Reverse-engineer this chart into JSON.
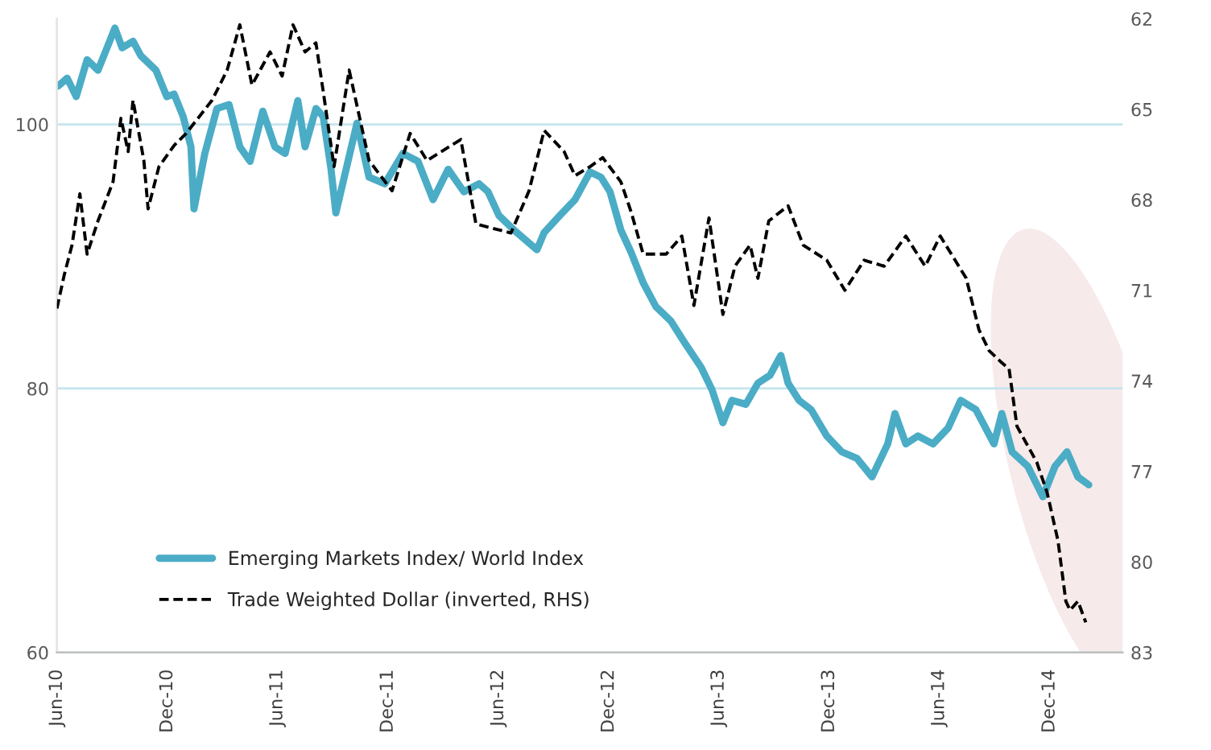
{
  "chart_data": {
    "type": "line",
    "xlim": [
      "2010-06-01",
      "2015-04-01"
    ],
    "xticks": [
      {
        "value": "2010-06-01",
        "label": "Jun-10"
      },
      {
        "value": "2010-12-01",
        "label": "Dec-10"
      },
      {
        "value": "2011-06-01",
        "label": "Jun-11"
      },
      {
        "value": "2011-12-01",
        "label": "Dec-11"
      },
      {
        "value": "2012-06-01",
        "label": "Jun-12"
      },
      {
        "value": "2012-12-01",
        "label": "Dec-12"
      },
      {
        "value": "2013-06-01",
        "label": "Jun-13"
      },
      {
        "value": "2013-12-01",
        "label": "Dec-13"
      },
      {
        "value": "2014-06-01",
        "label": "Jun-14"
      },
      {
        "value": "2014-12-01",
        "label": "Dec-14"
      }
    ],
    "ylim": [
      60,
      108
    ],
    "yticks": [
      60,
      80,
      100
    ],
    "y2lim": [
      83,
      62
    ],
    "y2ticks": [
      62,
      65,
      68,
      71,
      74,
      77,
      80,
      83
    ],
    "grid": "y",
    "legend": "bottom left",
    "series": [
      {
        "name": "Emerging Markets Index/ World Index",
        "color": "#4bacc6",
        "line_style": "solid",
        "x": [
          "2010-06-03",
          "2010-06-18",
          "2010-07-03",
          "2010-07-21",
          "2010-08-08",
          "2010-08-23",
          "2010-09-05",
          "2010-09-17",
          "2010-10-05",
          "2010-10-18",
          "2010-11-12",
          "2010-11-30",
          "2010-12-12",
          "2010-12-27",
          "2011-01-09",
          "2011-01-14",
          "2011-02-01",
          "2011-02-21",
          "2011-03-13",
          "2011-03-31",
          "2011-04-17",
          "2011-05-08",
          "2011-05-28",
          "2011-06-14",
          "2011-07-05",
          "2011-07-17",
          "2011-08-04",
          "2011-08-16",
          "2011-08-29",
          "2011-09-06",
          "2011-09-23",
          "2011-10-11",
          "2011-10-31",
          "2011-11-26",
          "2011-12-26",
          "2012-01-20",
          "2012-02-14",
          "2012-03-10",
          "2012-04-05",
          "2012-04-30",
          "2012-05-15",
          "2012-06-02",
          "2012-06-27",
          "2012-08-04",
          "2012-08-16",
          "2012-09-11",
          "2012-10-06",
          "2012-10-31",
          "2012-11-18",
          "2012-12-03",
          "2012-12-21",
          "2013-01-07",
          "2013-01-27",
          "2013-02-17",
          "2013-03-14",
          "2013-04-08",
          "2013-05-03",
          "2013-05-21",
          "2013-06-08",
          "2013-06-23",
          "2013-07-16",
          "2013-08-05",
          "2013-08-25",
          "2013-09-12",
          "2013-09-24",
          "2013-10-12",
          "2013-11-01",
          "2013-11-27",
          "2013-12-22",
          "2014-01-16",
          "2014-02-10",
          "2014-03-08",
          "2014-03-20",
          "2014-04-07",
          "2014-04-27",
          "2014-05-22",
          "2014-06-16",
          "2014-07-07",
          "2014-08-01",
          "2014-08-31",
          "2014-09-13",
          "2014-09-30",
          "2014-10-26",
          "2014-11-20",
          "2014-12-10",
          "2014-12-30",
          "2015-01-17",
          "2015-02-04"
        ],
        "values": [
          102.9,
          103.5,
          102.1,
          104.9,
          104.1,
          105.8,
          107.3,
          105.8,
          106.3,
          105.2,
          104.1,
          102.1,
          102.3,
          100.6,
          98.3,
          93.6,
          97.8,
          101.2,
          101.5,
          98.3,
          97.2,
          101.0,
          98.3,
          97.8,
          101.8,
          98.3,
          101.2,
          100.6,
          96.6,
          93.3,
          96.6,
          100.1,
          96.0,
          95.5,
          97.8,
          97.2,
          94.3,
          96.6,
          94.9,
          95.5,
          94.9,
          93.1,
          92.0,
          90.5,
          91.8,
          93.1,
          94.3,
          96.4,
          96.0,
          94.9,
          92.0,
          90.3,
          88.0,
          86.2,
          85.1,
          83.3,
          81.6,
          79.9,
          77.4,
          79.1,
          78.8,
          80.4,
          81.0,
          82.5,
          80.4,
          79.1,
          78.4,
          76.4,
          75.2,
          74.7,
          73.3,
          75.8,
          78.1,
          75.8,
          76.4,
          75.8,
          77.0,
          79.1,
          78.4,
          75.8,
          78.1,
          75.2,
          74.1,
          71.8,
          74.1,
          75.2,
          73.3,
          72.7
        ]
      },
      {
        "name": "Trade Weighted Dollar (inverted, RHS)",
        "color": "#000000",
        "line_style": "dashed",
        "axis": "y2",
        "x": [
          "2010-06-01",
          "2010-06-13",
          "2010-06-26",
          "2010-07-09",
          "2010-07-21",
          "2010-08-08",
          "2010-09-02",
          "2010-09-15",
          "2010-09-27",
          "2010-10-05",
          "2010-10-23",
          "2010-10-30",
          "2010-11-17",
          "2010-12-12",
          "2011-01-01",
          "2011-02-13",
          "2011-03-10",
          "2011-03-31",
          "2011-04-20",
          "2011-05-20",
          "2011-06-09",
          "2011-06-27",
          "2011-07-17",
          "2011-08-04",
          "2011-08-16",
          "2011-09-03",
          "2011-09-28",
          "2011-10-31",
          "2011-12-08",
          "2012-01-07",
          "2012-02-04",
          "2012-03-31",
          "2012-04-25",
          "2012-06-22",
          "2012-07-22",
          "2012-08-16",
          "2012-09-18",
          "2012-10-06",
          "2012-10-31",
          "2012-11-21",
          "2012-12-21",
          "2013-01-07",
          "2013-01-27",
          "2013-03-06",
          "2013-04-01",
          "2013-04-21",
          "2013-05-16",
          "2013-06-08",
          "2013-06-28",
          "2013-07-23",
          "2013-08-05",
          "2013-08-23",
          "2013-09-24",
          "2013-10-19",
          "2013-11-27",
          "2013-12-27",
          "2014-01-28",
          "2014-03-02",
          "2014-04-07",
          "2014-05-09",
          "2014-06-03",
          "2014-07-16",
          "2014-08-06",
          "2014-08-23",
          "2014-09-13",
          "2014-09-25",
          "2014-10-08",
          "2014-11-10",
          "2014-11-27",
          "2014-12-15",
          "2014-12-28",
          "2015-01-04",
          "2015-01-17",
          "2015-01-30"
        ],
        "values": [
          71.6,
          70.5,
          69.5,
          67.8,
          69.8,
          68.7,
          67.4,
          65.3,
          66.4,
          64.7,
          66.7,
          68.3,
          66.9,
          66.2,
          65.8,
          64.7,
          63.7,
          62.2,
          64.2,
          63.1,
          63.9,
          62.2,
          63.1,
          62.8,
          64.4,
          66.9,
          63.7,
          66.7,
          67.7,
          65.8,
          66.7,
          66.0,
          68.8,
          69.1,
          67.7,
          65.7,
          66.4,
          67.2,
          66.9,
          66.6,
          67.4,
          68.4,
          69.8,
          69.8,
          69.2,
          71.5,
          68.6,
          71.8,
          70.2,
          69.5,
          70.6,
          68.7,
          68.2,
          69.5,
          70.0,
          71.0,
          70.0,
          70.2,
          69.2,
          70.2,
          69.2,
          70.6,
          72.3,
          73.0,
          73.4,
          73.6,
          75.5,
          76.7,
          77.7,
          79.3,
          81.3,
          81.6,
          81.3,
          82.0
        ]
      }
    ]
  }
}
